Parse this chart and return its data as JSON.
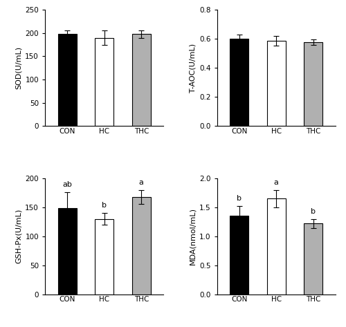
{
  "panels": [
    {
      "ylabel": "SOD(U/mL)",
      "ylim": [
        0,
        250
      ],
      "yticks": [
        0,
        50,
        100,
        150,
        200,
        250
      ],
      "categories": [
        "CON",
        "HC",
        "THC"
      ],
      "values": [
        198,
        190,
        198
      ],
      "errors": [
        7,
        15,
        8
      ],
      "bar_colors": [
        "#000000",
        "#ffffff",
        "#b0b0b0"
      ],
      "bar_edgecolors": [
        "#000000",
        "#000000",
        "#000000"
      ],
      "significance": [
        "",
        "",
        ""
      ],
      "row": 0,
      "col": 0
    },
    {
      "ylabel": "T-AOC(U/mL)",
      "ylim": [
        0.0,
        0.8
      ],
      "yticks": [
        0.0,
        0.2,
        0.4,
        0.6,
        0.8
      ],
      "categories": [
        "CON",
        "HC",
        "THC"
      ],
      "values": [
        0.6,
        0.585,
        0.577
      ],
      "errors": [
        0.03,
        0.033,
        0.018
      ],
      "bar_colors": [
        "#000000",
        "#ffffff",
        "#b0b0b0"
      ],
      "bar_edgecolors": [
        "#000000",
        "#000000",
        "#000000"
      ],
      "significance": [
        "",
        "",
        ""
      ],
      "row": 0,
      "col": 1
    },
    {
      "ylabel": "GSH-Px(U/mL)",
      "ylim": [
        0,
        200
      ],
      "yticks": [
        0,
        50,
        100,
        150,
        200
      ],
      "categories": [
        "CON",
        "HC",
        "THC"
      ],
      "values": [
        148,
        130,
        168
      ],
      "errors": [
        28,
        10,
        12
      ],
      "bar_colors": [
        "#000000",
        "#ffffff",
        "#b0b0b0"
      ],
      "bar_edgecolors": [
        "#000000",
        "#000000",
        "#000000"
      ],
      "significance": [
        "ab",
        "b",
        "a"
      ],
      "row": 1,
      "col": 0
    },
    {
      "ylabel": "MDA(nmol/mL)",
      "ylim": [
        0.0,
        2.0
      ],
      "yticks": [
        0.0,
        0.5,
        1.0,
        1.5,
        2.0
      ],
      "categories": [
        "CON",
        "HC",
        "THC"
      ],
      "values": [
        1.35,
        1.65,
        1.22
      ],
      "errors": [
        0.17,
        0.15,
        0.08
      ],
      "bar_colors": [
        "#000000",
        "#ffffff",
        "#b0b0b0"
      ],
      "bar_edgecolors": [
        "#000000",
        "#000000",
        "#000000"
      ],
      "significance": [
        "b",
        "a",
        "b"
      ],
      "row": 1,
      "col": 1
    }
  ],
  "bar_width": 0.5,
  "capsize": 3,
  "label_font_size": 8,
  "sig_font_size": 8,
  "tick_font_size": 7.5,
  "figsize": [
    5.0,
    4.73
  ],
  "dpi": 100
}
